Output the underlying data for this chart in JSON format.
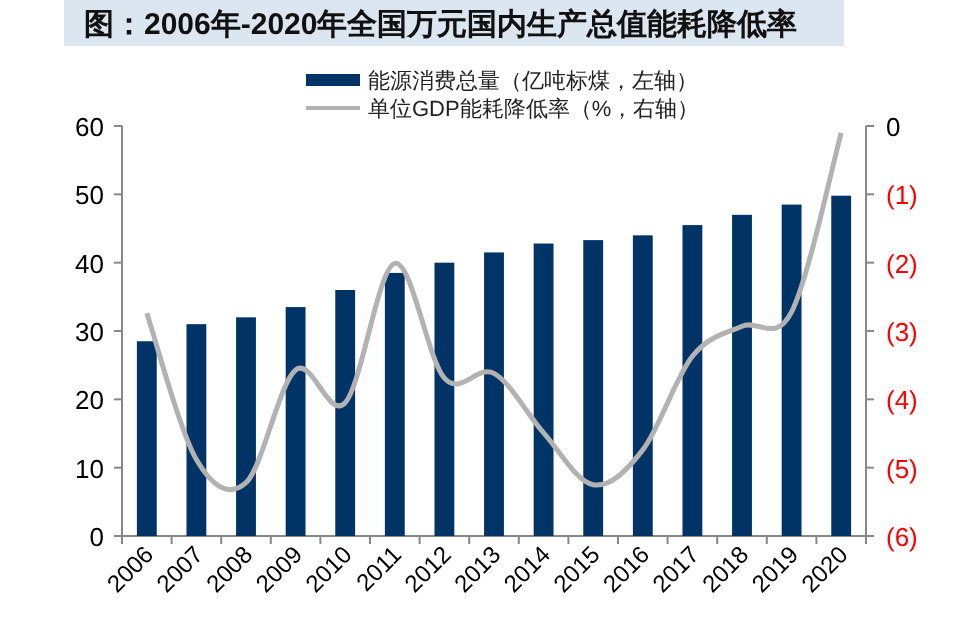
{
  "chart_data": {
    "type": "bar",
    "title": "图：2006年-2020年全国万元国内生产总值能耗降低率",
    "categories": [
      "2006",
      "2007",
      "2008",
      "2009",
      "2010",
      "2011",
      "2012",
      "2013",
      "2014",
      "2015",
      "2016",
      "2017",
      "2018",
      "2019",
      "2020"
    ],
    "series": [
      {
        "name": "能源消费总量（亿吨标煤，左轴）",
        "color": "#003366",
        "values": [
          28.5,
          31,
          32,
          33.5,
          36,
          38.5,
          40,
          41.5,
          42.8,
          43.3,
          44,
          45.5,
          47,
          48.5,
          49.8
        ]
      },
      {
        "name": "单位GDP能耗降低率（%，右轴）",
        "color": "#b2b2b2",
        "type": "line",
        "axis": "y2",
        "values": [
          -2.74,
          -4.88,
          -5.22,
          -3.57,
          -4.05,
          -2.01,
          -3.69,
          -3.62,
          -4.49,
          -5.25,
          -4.74,
          -3.37,
          -2.93,
          -2.72,
          -0.1
        ]
      }
    ],
    "ylim": [
      0,
      60
    ],
    "yticks": [
      0,
      10,
      20,
      30,
      40,
      50,
      60
    ],
    "y2lim": [
      -6,
      0
    ],
    "y2ticks": [
      {
        "value": 0,
        "label": "0"
      },
      {
        "value": -1,
        "label": "(1)"
      },
      {
        "value": -2,
        "label": "(2)"
      },
      {
        "value": -3,
        "label": "(3)"
      },
      {
        "value": -4,
        "label": "(4)"
      },
      {
        "value": -5,
        "label": "(5)"
      },
      {
        "value": -6,
        "label": "(6)"
      }
    ],
    "legend": "top",
    "grid": false
  }
}
